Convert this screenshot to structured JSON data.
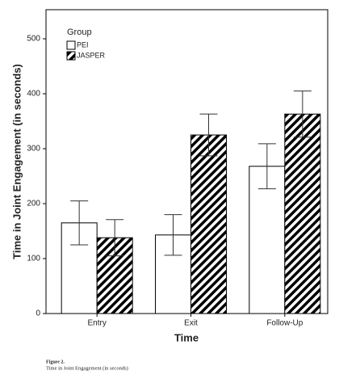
{
  "chart_data": {
    "type": "bar",
    "x_label": "Time",
    "y_label": "Time in Joint Engagement (in seconds)",
    "legend_title": "Group",
    "categories": [
      "Entry",
      "Exit",
      "Follow-Up"
    ],
    "series": [
      {
        "name": "PEI",
        "color": "#ffffff",
        "hatch": false,
        "values": [
          165,
          143,
          268
        ],
        "errors": [
          40,
          37,
          41
        ]
      },
      {
        "name": "JASPER",
        "color": "#000000",
        "hatch": true,
        "values": [
          138,
          325,
          363
        ],
        "errors": [
          33,
          38,
          42
        ]
      }
    ],
    "ylim": [
      0,
      553
    ],
    "yticks": [
      0,
      100,
      200,
      300,
      400,
      500
    ],
    "grid": false
  },
  "caption": {
    "label": "Figure 2.",
    "text": "Time in Joint Engagement (in seconds)"
  }
}
